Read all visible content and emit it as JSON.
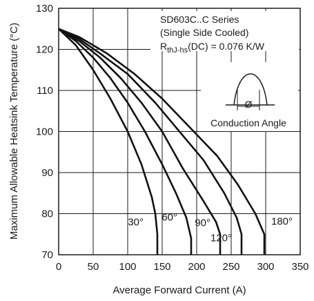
{
  "chart_data": {
    "type": "line",
    "title": "",
    "xlabel": "Average Forward Current (A)",
    "ylabel": "Maximum Allowable Heatsink Temperature (°C)",
    "xlim": [
      0,
      350
    ],
    "ylim": [
      70,
      130
    ],
    "x_ticks": [
      0,
      50,
      100,
      150,
      200,
      250,
      300,
      350
    ],
    "y_ticks": [
      70,
      80,
      90,
      100,
      110,
      120,
      130
    ],
    "grid": true,
    "annotations": {
      "series_line": "SD603C..C Series",
      "cooling_line": "(Single Side Cooled)",
      "rth_main": "R",
      "rth_sub": "thJ-hs",
      "rth_value": "(DC) = 0.076 K/W",
      "inset_symbol": "Ø",
      "inset_caption": "Conduction Angle"
    },
    "series": [
      {
        "name": "30°",
        "points": [
          [
            0,
            125
          ],
          [
            25,
            121
          ],
          [
            50,
            115
          ],
          [
            75,
            108
          ],
          [
            100,
            100
          ],
          [
            120,
            92
          ],
          [
            135,
            84
          ],
          [
            140,
            80
          ],
          [
            143,
            75
          ],
          [
            143,
            70
          ]
        ]
      },
      {
        "name": "60°",
        "points": [
          [
            0,
            125
          ],
          [
            25,
            122
          ],
          [
            50,
            118
          ],
          [
            75,
            113
          ],
          [
            100,
            107
          ],
          [
            125,
            100
          ],
          [
            150,
            92
          ],
          [
            170,
            85
          ],
          [
            185,
            79
          ],
          [
            192,
            74
          ],
          [
            192,
            70
          ]
        ]
      },
      {
        "name": "90°",
        "points": [
          [
            0,
            125
          ],
          [
            30,
            122
          ],
          [
            60,
            118
          ],
          [
            90,
            113
          ],
          [
            120,
            107
          ],
          [
            150,
            100
          ],
          [
            180,
            91
          ],
          [
            210,
            83
          ],
          [
            228,
            78
          ],
          [
            234,
            75
          ],
          [
            234,
            70
          ]
        ]
      },
      {
        "name": "120°",
        "points": [
          [
            0,
            125
          ],
          [
            30,
            122.5
          ],
          [
            60,
            119
          ],
          [
            100,
            114
          ],
          [
            140,
            107
          ],
          [
            180,
            99
          ],
          [
            210,
            93
          ],
          [
            240,
            85
          ],
          [
            258,
            79
          ],
          [
            265,
            75
          ],
          [
            265,
            70
          ]
        ]
      },
      {
        "name": "180°",
        "points": [
          [
            0,
            125
          ],
          [
            30,
            123
          ],
          [
            70,
            119
          ],
          [
            110,
            114
          ],
          [
            150,
            108
          ],
          [
            190,
            101
          ],
          [
            230,
            94
          ],
          [
            260,
            87
          ],
          [
            285,
            80
          ],
          [
            298,
            75
          ],
          [
            298,
            70
          ]
        ]
      }
    ]
  }
}
